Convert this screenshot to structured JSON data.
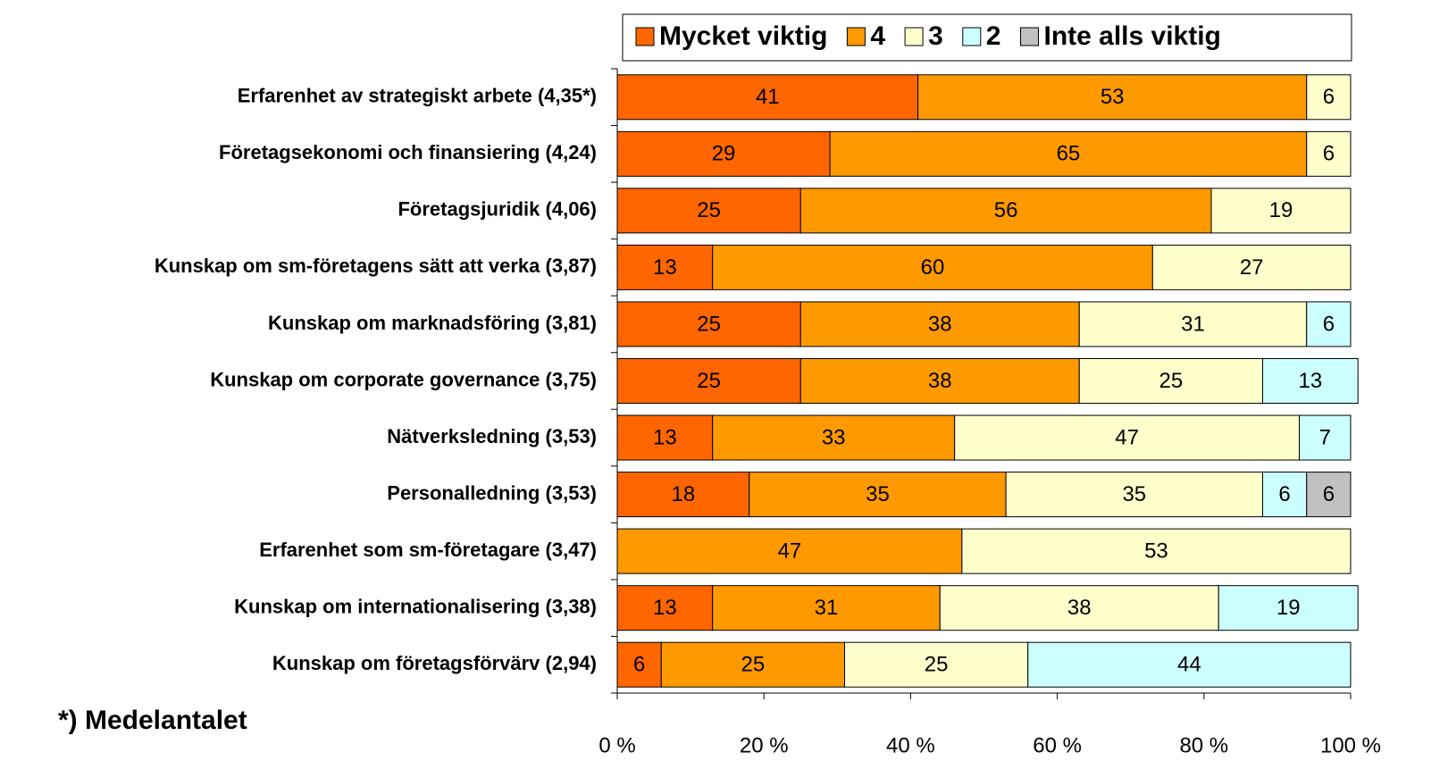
{
  "chart_data": {
    "type": "stacked-bar-horizontal",
    "categories": [
      "Erfarenhet av strategiskt arbete (4,35*)",
      "Företagsekonomi och finansiering (4,24)",
      "Företagsjuridik (4,06)",
      "Kunskap om sm-företagens sätt att verka (3,87)",
      "Kunskap om marknadsföring (3,81)",
      "Kunskap om corporate governance (3,75)",
      "Nätverksledning (3,53)",
      "Personalledning (3,53)",
      "Erfarenhet som sm-företagare (3,47)",
      "Kunskap om internationalisering (3,38)",
      "Kunskap om företagsförvärv (2,94)"
    ],
    "series": [
      {
        "name": "Mycket viktig",
        "color": "#FF6600",
        "values": [
          41,
          29,
          25,
          13,
          25,
          25,
          13,
          18,
          0,
          13,
          6
        ]
      },
      {
        "name": "4",
        "color": "#FF9900",
        "values": [
          53,
          65,
          56,
          60,
          38,
          38,
          33,
          35,
          47,
          31,
          25
        ]
      },
      {
        "name": "3",
        "color": "#FFFFCC",
        "values": [
          6,
          6,
          19,
          27,
          31,
          25,
          47,
          35,
          53,
          38,
          25
        ]
      },
      {
        "name": "2",
        "color": "#CCFFFF",
        "values": [
          0,
          0,
          0,
          0,
          6,
          13,
          7,
          6,
          0,
          19,
          44
        ]
      },
      {
        "name": "Inte alls viktig",
        "color": "#C0C0C0",
        "values": [
          0,
          0,
          0,
          0,
          0,
          0,
          0,
          6,
          0,
          0,
          0
        ]
      }
    ],
    "xlim": [
      0,
      100
    ],
    "xticks": [
      {
        "value": 0,
        "label": "0 %"
      },
      {
        "value": 20,
        "label": "20 %"
      },
      {
        "value": 40,
        "label": "40 %"
      },
      {
        "value": 60,
        "label": "60 %"
      },
      {
        "value": 80,
        "label": "80 %"
      },
      {
        "value": 100,
        "label": "100 %"
      }
    ],
    "legend": "top",
    "footnote": "*) Medelantalet"
  }
}
